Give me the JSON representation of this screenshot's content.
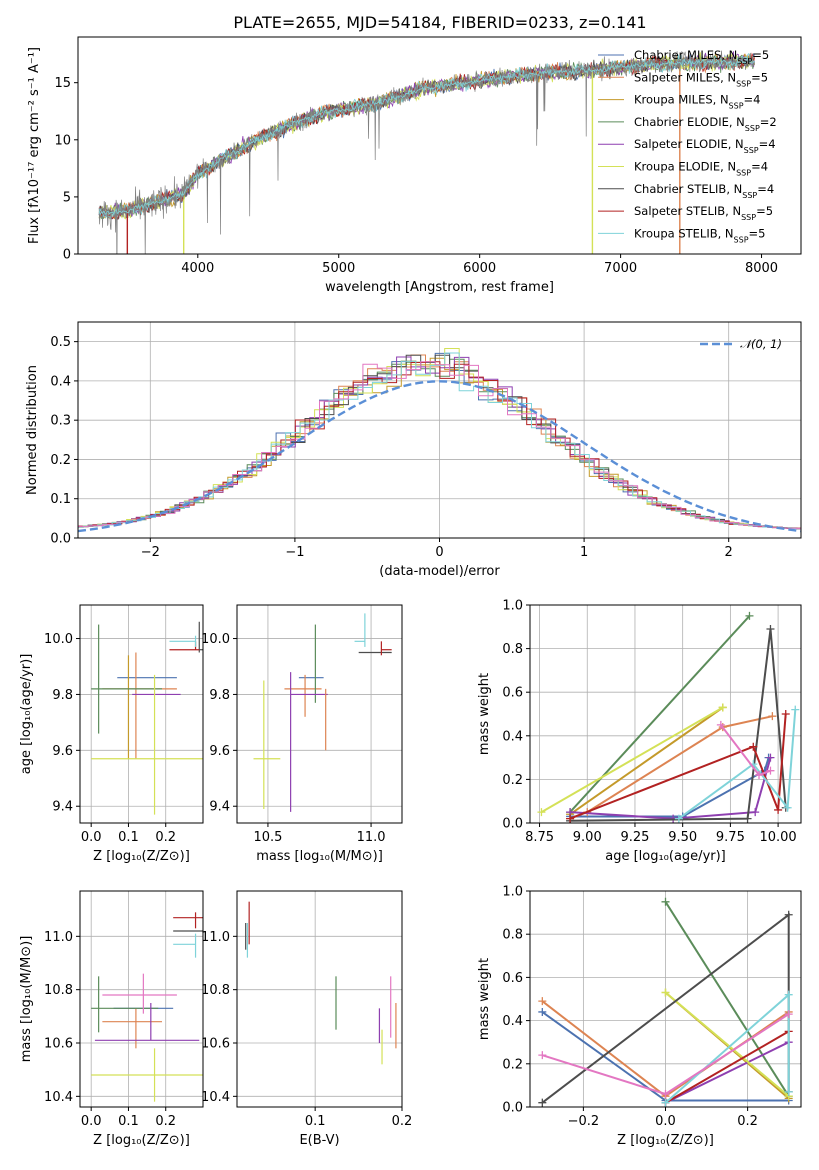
{
  "title": "PLATE=2655, MJD=54184, FIBERID=0233, z=0.141",
  "colors": {
    "Chabrier MILES": "#4c72b0",
    "Salpeter MILES": "#dd8452",
    "Kroupa MILES": "#c49a2a",
    "Chabrier ELODIE": "#5b8c5a",
    "Salpeter ELODIE": "#8e3fb0",
    "Kroupa ELODIE": "#d4e157",
    "Chabrier STELIB": "#4d4d4d",
    "Salpeter STELIB": "#b22222",
    "Kroupa STELIB": "#7fd3d9"
  },
  "chart_data": [
    {
      "type": "line",
      "xlabel": "wavelength [Angstrom, rest frame]",
      "ylabel": "Flux [fλ10⁻¹⁷ erg cm⁻² s⁻¹ A⁻¹]",
      "xlim": [
        3150,
        8280
      ],
      "ylim": [
        0,
        19
      ],
      "xticks": [
        4000,
        5000,
        6000,
        7000,
        8000
      ],
      "yticks": [
        0,
        5,
        10,
        15
      ],
      "legend_position": "top-right",
      "legend": [
        {
          "label": "Chabrier MILES, N",
          "sub": "SSP",
          "value": "=5"
        },
        {
          "label": "Salpeter MILES, N",
          "sub": "SSP",
          "value": "=5"
        },
        {
          "label": "Kroupa MILES, N",
          "sub": "SSP",
          "value": "=4"
        },
        {
          "label": "Chabrier ELODIE, N",
          "sub": "SSP",
          "value": "=2"
        },
        {
          "label": "Salpeter ELODIE, N",
          "sub": "SSP",
          "value": "=4"
        },
        {
          "label": "Kroupa ELODIE, N",
          "sub": "SSP",
          "value": "=4"
        },
        {
          "label": "Chabrier STELIB, N",
          "sub": "SSP",
          "value": "=4"
        },
        {
          "label": "Salpeter STELIB, N",
          "sub": "SSP",
          "value": "=5"
        },
        {
          "label": "Kroupa STELIB, N",
          "sub": "SSP",
          "value": "=5"
        }
      ],
      "continuum": [
        [
          3300,
          3.5
        ],
        [
          3500,
          3.8
        ],
        [
          3700,
          4.5
        ],
        [
          3900,
          5.3
        ],
        [
          4000,
          7.0
        ],
        [
          4200,
          8.5
        ],
        [
          4500,
          10.5
        ],
        [
          4800,
          12.0
        ],
        [
          5000,
          12.6
        ],
        [
          5300,
          13.3
        ],
        [
          5600,
          14.5
        ],
        [
          6000,
          15.2
        ],
        [
          6400,
          15.8
        ],
        [
          6800,
          16.1
        ],
        [
          7200,
          16.6
        ],
        [
          7600,
          16.8
        ],
        [
          7900,
          16.9
        ]
      ],
      "gaps": [
        [
          3500,
          "Salpeter STELIB"
        ],
        [
          3900,
          "Kroupa ELODIE"
        ],
        [
          6800,
          "Kroupa ELODIE"
        ],
        [
          7420,
          "Salpeter MILES"
        ]
      ]
    },
    {
      "type": "histogram",
      "xlabel": "(data-model)/error",
      "ylabel": "Normed distribution",
      "xlim": [
        -2.5,
        2.5
      ],
      "ylim": [
        0,
        0.55
      ],
      "xticks": [
        -2,
        -1,
        0,
        1,
        2
      ],
      "yticks": [
        0.0,
        0.1,
        0.2,
        0.3,
        0.4,
        0.5
      ],
      "legend": {
        "label": "𝒩(0, 1)",
        "style": "dashed"
      },
      "legend_position": "top-right",
      "bin_width": 0.1,
      "reference": {
        "name": "N(0,1)",
        "color": "#5b8fd6"
      }
    },
    {
      "type": "errorbar",
      "xlabel": "Z [log₁₀(Z/Z⊙)]",
      "ylabel": "age  [log₁₀(age/yr)]",
      "xlim": [
        -0.03,
        0.3
      ],
      "ylim": [
        9.34,
        10.12
      ],
      "xticks": [
        0.0,
        0.1,
        0.2
      ],
      "yticks": [
        9.4,
        9.6,
        9.8,
        10.0
      ],
      "points": [
        {
          "series": "Chabrier MILES",
          "x": 0.12,
          "y": 9.86,
          "xerr": [
            0.05,
            0.11
          ],
          "yerr": [
            0.0,
            0.0
          ]
        },
        {
          "series": "Salpeter MILES",
          "x": 0.12,
          "y": 9.82,
          "xerr": [
            0.09,
            0.11
          ],
          "yerr": [
            0.25,
            0.13
          ]
        },
        {
          "series": "Kroupa MILES",
          "x": 0.1,
          "y": 9.82,
          "xerr": [
            0.0,
            0.0
          ],
          "yerr": [
            0.25,
            0.12
          ]
        },
        {
          "series": "Chabrier ELODIE",
          "x": 0.02,
          "y": 9.82,
          "xerr": [
            0.02,
            0.17
          ],
          "yerr": [
            0.16,
            0.23
          ]
        },
        {
          "series": "Salpeter ELODIE",
          "x": 0.17,
          "y": 9.8,
          "xerr": [
            0.06,
            0.07
          ],
          "yerr": [
            0.0,
            0.0
          ]
        },
        {
          "series": "Kroupa ELODIE",
          "x": 0.17,
          "y": 9.57,
          "xerr": [
            0.17,
            0.13
          ],
          "yerr": [
            0.2,
            0.3
          ]
        },
        {
          "series": "Chabrier STELIB",
          "x": 0.29,
          "y": 9.96,
          "xerr": [
            0.0,
            0.01
          ],
          "yerr": [
            0.01,
            0.1
          ]
        },
        {
          "series": "Salpeter STELIB",
          "x": 0.28,
          "y": 9.96,
          "xerr": [
            0.07,
            0.01
          ],
          "yerr": [
            0.0,
            0.03
          ]
        },
        {
          "series": "Kroupa STELIB",
          "x": 0.28,
          "y": 9.99,
          "xerr": [
            0.07,
            0.0
          ],
          "yerr": [
            0.02,
            0.02
          ]
        },
        {
          "series": "Salpeter MILES",
          "x": 0.2,
          "y": 9.81,
          "xerr": [
            0.0,
            0.0
          ],
          "yerr": [
            0.0,
            0.0
          ]
        }
      ]
    },
    {
      "type": "errorbar",
      "xlabel": "mass [log₁₀(M/M⊙)]",
      "xlim": [
        10.35,
        11.15
      ],
      "ylim": [
        9.34,
        10.12
      ],
      "xticks": [
        10.5,
        11.0
      ],
      "yticks": [
        9.4,
        9.6,
        9.8,
        10.0
      ],
      "points": [
        {
          "series": "Chabrier MILES",
          "x": 10.72,
          "y": 9.86,
          "xerr": [
            0.07,
            0.05
          ],
          "yerr": [
            0.0,
            0.0
          ]
        },
        {
          "series": "Salpeter MILES",
          "x": 10.68,
          "y": 9.82,
          "xerr": [
            0.1,
            0.08
          ],
          "yerr": [
            0.1,
            0.05
          ]
        },
        {
          "series": "Chabrier ELODIE",
          "x": 10.73,
          "y": 9.82,
          "xerr": [
            0.0,
            0.0
          ],
          "yerr": [
            0.05,
            0.23
          ]
        },
        {
          "series": "Salpeter ELODIE",
          "x": 10.61,
          "y": 9.8,
          "xerr": [
            0.0,
            0.18
          ],
          "yerr": [
            0.42,
            0.08
          ]
        },
        {
          "series": "Kroupa ELODIE",
          "x": 10.48,
          "y": 9.57,
          "xerr": [
            0.05,
            0.08
          ],
          "yerr": [
            0.18,
            0.28
          ]
        },
        {
          "series": "Chabrier STELIB",
          "x": 11.02,
          "y": 9.95,
          "xerr": [
            0.08,
            0.08
          ],
          "yerr": [
            0.0,
            0.0
          ]
        },
        {
          "series": "Salpeter STELIB",
          "x": 11.05,
          "y": 9.96,
          "xerr": [
            0.0,
            0.05
          ],
          "yerr": [
            0.02,
            0.03
          ]
        },
        {
          "series": "Kroupa STELIB",
          "x": 10.97,
          "y": 9.99,
          "xerr": [
            0.05,
            0.0
          ],
          "yerr": [
            0.02,
            0.1
          ]
        },
        {
          "series": "Salpeter MILES",
          "x": 10.78,
          "y": 9.67,
          "xerr": [
            0.0,
            0.0
          ],
          "yerr": [
            0.07,
            0.15
          ]
        }
      ]
    },
    {
      "type": "line",
      "xlabel": "age  [log₁₀(age/yr)]",
      "ylabel": "mass weight",
      "xlim": [
        8.7,
        10.12
      ],
      "ylim": [
        0,
        1.0
      ],
      "xticks": [
        8.75,
        9.0,
        9.25,
        9.5,
        9.75,
        10.0
      ],
      "yticks": [
        0.0,
        0.2,
        0.4,
        0.6,
        0.8,
        1.0
      ],
      "series": [
        {
          "name": "Chabrier MILES",
          "x": [
            8.91,
            9.5,
            9.93,
            9.95
          ],
          "y": [
            0.03,
            0.03,
            0.24,
            0.3
          ]
        },
        {
          "name": "Salpeter MILES",
          "x": [
            8.91,
            9.0,
            9.71,
            9.97
          ],
          "y": [
            0.02,
            0.05,
            0.44,
            0.49
          ]
        },
        {
          "name": "Kroupa MILES",
          "x": [
            8.91,
            9.71
          ],
          "y": [
            0.04,
            0.53
          ]
        },
        {
          "name": "Chabrier ELODIE",
          "x": [
            8.91,
            9.85
          ],
          "y": [
            0.05,
            0.95
          ]
        },
        {
          "name": "Salpeter ELODIE",
          "x": [
            8.91,
            9.45,
            9.88,
            9.96
          ],
          "y": [
            0.05,
            0.02,
            0.05,
            0.3
          ]
        },
        {
          "name": "Kroupa ELODIE",
          "x": [
            8.76,
            9.71
          ],
          "y": [
            0.05,
            0.53
          ]
        },
        {
          "name": "Chabrier STELIB",
          "x": [
            8.91,
            9.84,
            9.96,
            10.04
          ],
          "y": [
            0.01,
            0.02,
            0.89,
            0.07
          ]
        },
        {
          "name": "Salpeter STELIB",
          "x": [
            8.91,
            9.87,
            10.0,
            10.04
          ],
          "y": [
            0.02,
            0.35,
            0.06,
            0.5
          ]
        },
        {
          "name": "Kroupa STELIB",
          "x": [
            9.48,
            9.87,
            10.05,
            10.09
          ],
          "y": [
            0.02,
            0.27,
            0.07,
            0.52
          ]
        },
        {
          "name": "Pink",
          "x": [
            9.7,
            9.9,
            9.96
          ],
          "y": [
            0.45,
            0.22,
            0.24
          ]
        }
      ]
    },
    {
      "type": "errorbar",
      "xlabel": "Z [log₁₀(Z/Z⊙)]",
      "ylabel": "mass [log₁₀(M/M⊙)]",
      "xlim": [
        -0.03,
        0.3
      ],
      "ylim": [
        10.36,
        11.17
      ],
      "xticks": [
        0.0,
        0.1,
        0.2
      ],
      "yticks": [
        10.4,
        10.6,
        10.8,
        11.0
      ],
      "points": [
        {
          "series": "Chabrier MILES",
          "x": 0.11,
          "y": 10.73,
          "xerr": [
            0.05,
            0.11
          ],
          "yerr": [
            0.0,
            0.0
          ]
        },
        {
          "series": "Salpeter MILES",
          "x": 0.12,
          "y": 10.68,
          "xerr": [
            0.09,
            0.07
          ],
          "yerr": [
            0.1,
            0.05
          ]
        },
        {
          "series": "Kroupa MILES",
          "x": 0.13,
          "y": 10.68,
          "xerr": [
            0.0,
            0.0
          ],
          "yerr": [
            0.0,
            0.0
          ]
        },
        {
          "series": "Chabrier ELODIE",
          "x": 0.02,
          "y": 10.73,
          "xerr": [
            0.02,
            0.16
          ],
          "yerr": [
            0.09,
            0.12
          ]
        },
        {
          "series": "Salpeter ELODIE",
          "x": 0.16,
          "y": 10.61,
          "xerr": [
            0.15,
            0.13
          ],
          "yerr": [
            0.0,
            0.14
          ]
        },
        {
          "series": "Kroupa ELODIE",
          "x": 0.17,
          "y": 10.48,
          "xerr": [
            0.17,
            0.13
          ],
          "yerr": [
            0.1,
            0.1
          ]
        },
        {
          "series": "Chabrier STELIB",
          "x": 0.29,
          "y": 11.02,
          "xerr": [
            0.07,
            0.01
          ],
          "yerr": [
            0.0,
            0.0
          ]
        },
        {
          "series": "Salpeter STELIB",
          "x": 0.28,
          "y": 11.07,
          "xerr": [
            0.06,
            0.02
          ],
          "yerr": [
            0.04,
            0.02
          ]
        },
        {
          "series": "Kroupa STELIB",
          "x": 0.28,
          "y": 10.97,
          "xerr": [
            0.06,
            0.0
          ],
          "yerr": [
            0.05,
            0.04
          ]
        },
        {
          "series": "Pink",
          "x": 0.14,
          "y": 10.78,
          "xerr": [
            0.11,
            0.09
          ],
          "yerr": [
            0.07,
            0.08
          ]
        }
      ]
    },
    {
      "type": "errorbar",
      "xlabel": "E(B-V)",
      "xlim": [
        0.01,
        0.2
      ],
      "ylim": [
        10.36,
        11.17
      ],
      "xticks": [
        0.1,
        0.2
      ],
      "yticks": [
        10.4,
        10.6,
        10.8,
        11.0
      ],
      "points": [
        {
          "series": "Kroupa STELIB",
          "x": 0.022,
          "y": 10.99,
          "yerr": [
            0.07,
            0.06
          ]
        },
        {
          "series": "Salpeter STELIB",
          "x": 0.024,
          "y": 11.04,
          "yerr": [
            0.07,
            0.09
          ]
        },
        {
          "series": "Chabrier STELIB",
          "x": 0.02,
          "y": 11.0,
          "yerr": [
            0.05,
            0.05
          ]
        },
        {
          "series": "Chabrier ELODIE",
          "x": 0.124,
          "y": 10.75,
          "yerr": [
            0.1,
            0.1
          ]
        },
        {
          "series": "Salpeter ELODIE",
          "x": 0.174,
          "y": 10.66,
          "yerr": [
            0.06,
            0.07
          ]
        },
        {
          "series": "Kroupa ELODIE",
          "x": 0.177,
          "y": 10.58,
          "yerr": [
            0.06,
            0.07
          ]
        },
        {
          "series": "Pink",
          "x": 0.187,
          "y": 10.72,
          "yerr": [
            0.1,
            0.13
          ]
        },
        {
          "series": "Salpeter MILES",
          "x": 0.193,
          "y": 10.67,
          "yerr": [
            0.09,
            0.08
          ]
        }
      ]
    },
    {
      "type": "line",
      "xlabel": "Z [log₁₀(Z/Z⊙)]",
      "ylabel": "mass weight",
      "xlim": [
        -0.33,
        0.33
      ],
      "ylim": [
        0,
        1.0
      ],
      "xticks": [
        -0.2,
        0.0,
        0.2
      ],
      "yticks": [
        0.0,
        0.2,
        0.4,
        0.6,
        0.8,
        1.0
      ],
      "series": [
        {
          "name": "Chabrier MILES",
          "x": [
            -0.3,
            0.0,
            0.3
          ],
          "y": [
            0.44,
            0.03,
            0.03
          ]
        },
        {
          "name": "Salpeter MILES",
          "x": [
            -0.3,
            0.0,
            0.3
          ],
          "y": [
            0.49,
            0.05,
            0.44
          ]
        },
        {
          "name": "Kroupa MILES",
          "x": [
            0.0,
            0.3
          ],
          "y": [
            0.53,
            0.04
          ]
        },
        {
          "name": "Chabrier ELODIE",
          "x": [
            0.0,
            0.3
          ],
          "y": [
            0.95,
            0.05
          ]
        },
        {
          "name": "Salpeter ELODIE",
          "x": [
            0.0,
            0.3
          ],
          "y": [
            0.02,
            0.3
          ]
        },
        {
          "name": "Kroupa ELODIE",
          "x": [
            0.0,
            0.3
          ],
          "y": [
            0.53,
            0.05
          ]
        },
        {
          "name": "Chabrier STELIB",
          "x": [
            -0.3,
            0.3,
            0.3
          ],
          "y": [
            0.02,
            0.89,
            0.07
          ]
        },
        {
          "name": "Salpeter STELIB",
          "x": [
            0.0,
            0.3
          ],
          "y": [
            0.02,
            0.35
          ]
        },
        {
          "name": "Kroupa STELIB",
          "x": [
            0.0,
            0.3,
            0.3
          ],
          "y": [
            0.02,
            0.52,
            0.07
          ]
        },
        {
          "name": "Pink",
          "x": [
            -0.3,
            0.0,
            0.3
          ],
          "y": [
            0.24,
            0.06,
            0.43
          ]
        }
      ]
    }
  ]
}
